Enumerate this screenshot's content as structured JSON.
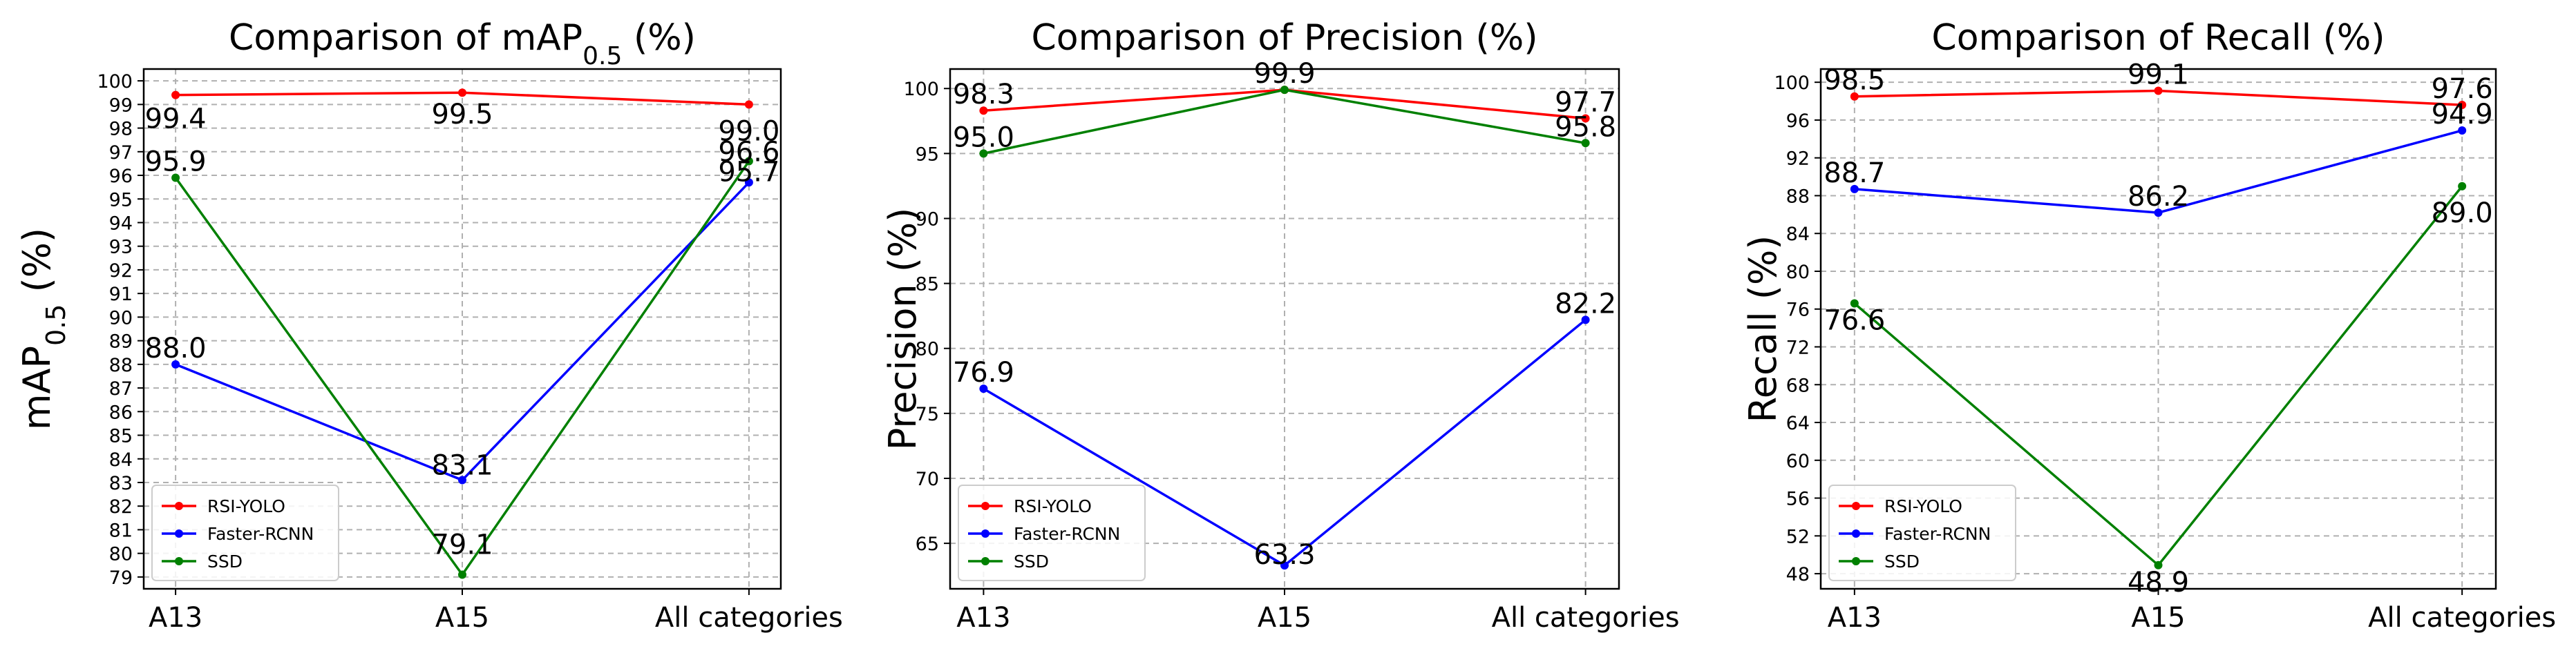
{
  "chart_data": [
    {
      "type": "line",
      "title_main": "Comparison of mAP",
      "title_sub": "0.5",
      "title_tail": " (%)",
      "ylabel_main": "mAP",
      "ylabel_sub": "0.5",
      "ylabel_tail": " (%)",
      "xlabel": "",
      "categories": [
        "A13",
        "A15",
        "All categories"
      ],
      "ylim": [
        78.5,
        100.5
      ],
      "yticks": [
        79,
        80,
        81,
        82,
        83,
        84,
        85,
        86,
        87,
        88,
        89,
        90,
        91,
        92,
        93,
        94,
        95,
        96,
        97,
        98,
        99,
        100
      ],
      "grid": true,
      "legend_position": "lower-left",
      "series": [
        {
          "name": "RSI-YOLO",
          "color": "#ff0000",
          "values": [
            99.4,
            99.5,
            99.0
          ],
          "labels": [
            "99.4",
            "99.5",
            "99.0"
          ]
        },
        {
          "name": "Faster-RCNN",
          "color": "#0000ff",
          "values": [
            88.0,
            83.1,
            95.7
          ],
          "labels": [
            "88.0",
            "83.1",
            "95.7"
          ]
        },
        {
          "name": "SSD",
          "color": "#008000",
          "values": [
            95.9,
            79.1,
            96.6
          ],
          "labels": [
            "95.9",
            "79.1",
            "96.6"
          ]
        }
      ]
    },
    {
      "type": "line",
      "title_main": "Comparison of Precision (%)",
      "title_sub": "",
      "title_tail": "",
      "ylabel_main": "Precision (%)",
      "ylabel_sub": "",
      "ylabel_tail": "",
      "xlabel": "",
      "categories": [
        "A13",
        "A15",
        "All categories"
      ],
      "ylim": [
        61.5,
        101.5
      ],
      "yticks": [
        65,
        70,
        75,
        80,
        85,
        90,
        95,
        100
      ],
      "grid": true,
      "legend_position": "lower-left",
      "series": [
        {
          "name": "RSI-YOLO",
          "color": "#ff0000",
          "values": [
            98.3,
            99.9,
            97.7
          ],
          "labels": [
            "98.3",
            "99.9",
            "97.7"
          ]
        },
        {
          "name": "Faster-RCNN",
          "color": "#0000ff",
          "values": [
            76.9,
            63.3,
            82.2
          ],
          "labels": [
            "76.9",
            "63.3",
            "82.2"
          ]
        },
        {
          "name": "SSD",
          "color": "#008000",
          "values": [
            95.0,
            99.9,
            95.8
          ],
          "labels": [
            "95.0",
            "",
            "95.8"
          ]
        }
      ]
    },
    {
      "type": "line",
      "title_main": "Comparison of Recall (%)",
      "title_sub": "",
      "title_tail": "",
      "ylabel_main": "Recall (%)",
      "ylabel_sub": "",
      "ylabel_tail": "",
      "xlabel": "",
      "categories": [
        "A13",
        "A15",
        "All categories"
      ],
      "ylim": [
        46.4,
        101.4
      ],
      "yticks": [
        48,
        52,
        56,
        60,
        64,
        68,
        72,
        76,
        80,
        84,
        88,
        92,
        96,
        100
      ],
      "grid": true,
      "legend_position": "lower-left",
      "series": [
        {
          "name": "RSI-YOLO",
          "color": "#ff0000",
          "values": [
            98.5,
            99.1,
            97.6
          ],
          "labels": [
            "98.5",
            "99.1",
            "97.6"
          ]
        },
        {
          "name": "Faster-RCNN",
          "color": "#0000ff",
          "values": [
            88.7,
            86.2,
            94.9
          ],
          "labels": [
            "88.7",
            "86.2",
            "94.9"
          ]
        },
        {
          "name": "SSD",
          "color": "#008000",
          "values": [
            76.6,
            48.9,
            89.0
          ],
          "labels": [
            "76.6",
            "48.9",
            "89.0"
          ]
        }
      ]
    }
  ]
}
